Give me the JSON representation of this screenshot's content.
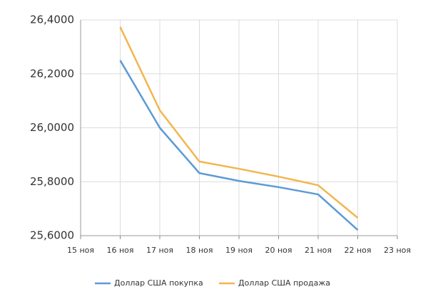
{
  "chart_data": {
    "type": "line",
    "categories": [
      "15 ноя",
      "16 ноя",
      "17 ноя",
      "18 ноя",
      "19 ноя",
      "20 ноя",
      "21 ноя",
      "22 ноя",
      "23 ноя"
    ],
    "series": [
      {
        "name": "Доллар США покупка",
        "color": "#5b9bd5",
        "values": [
          null,
          26.25,
          26.0,
          25.832,
          25.803,
          25.78,
          25.753,
          25.621,
          null
        ]
      },
      {
        "name": "Доллар США продажа",
        "color": "#f2b64f",
        "values": [
          null,
          26.374,
          26.065,
          25.875,
          25.848,
          25.819,
          25.787,
          25.666,
          null
        ]
      }
    ],
    "ylim": [
      25.6,
      26.4
    ],
    "yticks": [
      {
        "value": 25.6,
        "label": "25,6000"
      },
      {
        "value": 25.8,
        "label": "25,8000"
      },
      {
        "value": 26.0,
        "label": "26,0000"
      },
      {
        "value": 26.2,
        "label": "26,2000"
      },
      {
        "value": 26.4,
        "label": "26,4000"
      }
    ],
    "grid": true,
    "legend": "bottom"
  }
}
